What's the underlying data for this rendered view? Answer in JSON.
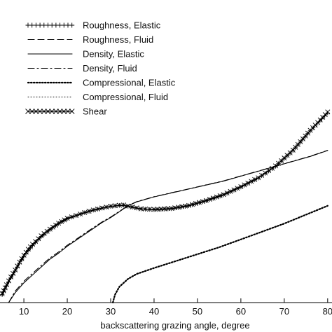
{
  "chart_data": {
    "type": "line",
    "xlabel": "backscattering grazing angle, degree",
    "xlim": [
      4.5,
      81
    ],
    "xticks": [
      "10",
      "20",
      "30",
      "40",
      "50",
      "60",
      "70",
      "80"
    ],
    "ylim": [
      0,
      1
    ],
    "grid": false,
    "legend_position": "top-left",
    "series": [
      {
        "name": "Roughness, Elastic",
        "style": "solid-plus",
        "x": [
          5,
          6,
          7,
          8,
          9,
          10,
          11,
          12,
          14,
          16,
          18,
          20,
          22,
          24,
          26,
          28,
          30,
          32,
          33,
          35,
          37,
          40,
          44,
          48,
          52,
          56,
          60,
          64,
          68,
          72,
          76,
          80
        ],
        "y": [
          0.04,
          0.085,
          0.125,
          0.16,
          0.2,
          0.235,
          0.265,
          0.29,
          0.335,
          0.37,
          0.4,
          0.425,
          0.44,
          0.455,
          0.468,
          0.478,
          0.487,
          0.492,
          0.493,
          0.482,
          0.474,
          0.47,
          0.475,
          0.49,
          0.515,
          0.545,
          0.585,
          0.63,
          0.69,
          0.77,
          0.87,
          0.96
        ]
      },
      {
        "name": "Roughness, Fluid",
        "style": "dashed",
        "x": [
          5,
          6,
          7,
          8,
          9,
          10,
          11,
          12,
          14,
          16,
          18,
          20,
          22,
          24,
          26,
          28,
          30,
          32,
          33,
          35,
          37,
          40,
          44,
          48,
          52,
          56,
          60,
          64,
          68,
          72,
          76,
          80
        ],
        "y": [
          0.035,
          0.08,
          0.12,
          0.158,
          0.195,
          0.23,
          0.262,
          0.288,
          0.332,
          0.368,
          0.398,
          0.423,
          0.439,
          0.454,
          0.467,
          0.477,
          0.486,
          0.491,
          0.492,
          0.483,
          0.475,
          0.471,
          0.476,
          0.491,
          0.516,
          0.546,
          0.586,
          0.631,
          0.691,
          0.771,
          0.871,
          0.96
        ]
      },
      {
        "name": "Density, Elastic",
        "style": "solid",
        "x": [
          6.5,
          8,
          10,
          12,
          14,
          16,
          18,
          20,
          22,
          24,
          26,
          28,
          30,
          32,
          34,
          36,
          40,
          44,
          48,
          52,
          56,
          60,
          64,
          68,
          72,
          76,
          80
        ],
        "y": [
          0.0,
          0.05,
          0.1,
          0.14,
          0.18,
          0.22,
          0.25,
          0.285,
          0.315,
          0.345,
          0.375,
          0.405,
          0.43,
          0.46,
          0.49,
          0.51,
          0.535,
          0.555,
          0.575,
          0.595,
          0.615,
          0.64,
          0.665,
          0.69,
          0.715,
          0.74,
          0.77
        ]
      },
      {
        "name": "Density, Fluid",
        "style": "dash-dot",
        "x": [
          6.5,
          8,
          10,
          12,
          14,
          16,
          18,
          20,
          22,
          24,
          26,
          28,
          30,
          32,
          34,
          36,
          40,
          44,
          48,
          52,
          56,
          60,
          64,
          68,
          72,
          76,
          80
        ],
        "y": [
          0.0,
          0.058,
          0.108,
          0.148,
          0.188,
          0.226,
          0.256,
          0.29,
          0.32,
          0.35,
          0.379,
          0.408,
          0.433,
          0.462,
          0.491,
          0.511,
          0.536,
          0.556,
          0.576,
          0.596,
          0.616,
          0.641,
          0.666,
          0.691,
          0.716,
          0.741,
          0.771
        ]
      },
      {
        "name": "Compressional, Elastic",
        "style": "dotted-heavy",
        "x": [
          30.5,
          31,
          32,
          33,
          34,
          36,
          40,
          45,
          50,
          55,
          60,
          65,
          70,
          75,
          80
        ],
        "y": [
          0.0,
          0.04,
          0.08,
          0.1,
          0.12,
          0.145,
          0.175,
          0.21,
          0.245,
          0.28,
          0.32,
          0.36,
          0.4,
          0.445,
          0.49
        ]
      },
      {
        "name": "Compressional, Fluid",
        "style": "dotted-light",
        "x": [
          30.5,
          31,
          32,
          33,
          34,
          36,
          40,
          45,
          50,
          55,
          60,
          65,
          70,
          75,
          80
        ],
        "y": [
          0.0,
          0.038,
          0.078,
          0.098,
          0.118,
          0.143,
          0.173,
          0.208,
          0.243,
          0.278,
          0.318,
          0.358,
          0.398,
          0.443,
          0.488
        ]
      },
      {
        "name": "Shear",
        "style": "solid-x",
        "x": [
          5,
          6,
          7,
          8,
          9,
          10,
          11,
          12,
          14,
          16,
          18,
          20,
          22,
          24,
          26,
          28,
          30,
          32,
          33,
          35,
          37,
          40,
          44,
          48,
          52,
          56,
          60,
          64,
          68,
          72,
          76,
          80
        ],
        "y": [
          0.045,
          0.09,
          0.13,
          0.165,
          0.205,
          0.24,
          0.27,
          0.295,
          0.338,
          0.372,
          0.402,
          0.427,
          0.441,
          0.456,
          0.469,
          0.479,
          0.488,
          0.493,
          0.494,
          0.484,
          0.475,
          0.472,
          0.477,
          0.492,
          0.517,
          0.547,
          0.587,
          0.632,
          0.692,
          0.772,
          0.872,
          0.965
        ]
      }
    ]
  }
}
